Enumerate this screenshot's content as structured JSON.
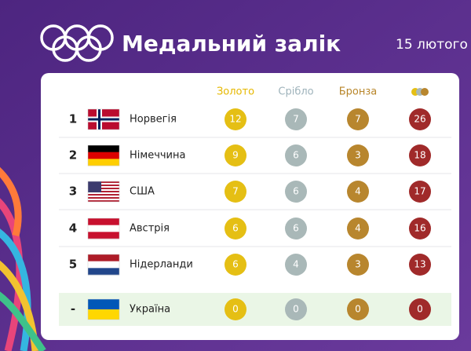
{
  "header": {
    "title": "Медальний залік",
    "date": "15 лютого"
  },
  "table": {
    "columns": [
      "Золото",
      "Срібло",
      "Бронза"
    ],
    "rows": [
      {
        "rank": 1,
        "country": "Норвегія",
        "gold": 12,
        "silver": 7,
        "bronze": 7,
        "total": 26
      },
      {
        "rank": 2,
        "country": "Німеччина",
        "gold": 9,
        "silver": 6,
        "bronze": 3,
        "total": 18
      },
      {
        "rank": 3,
        "country": "США",
        "gold": 7,
        "silver": 6,
        "bronze": 4,
        "total": 17
      },
      {
        "rank": 4,
        "country": "Австрія",
        "gold": 6,
        "silver": 6,
        "bronze": 4,
        "total": 16
      },
      {
        "rank": 5,
        "country": "Нідерланди",
        "gold": 6,
        "silver": 4,
        "bronze": 3,
        "total": 13
      },
      {
        "rank": "-",
        "country": "Україна",
        "gold": 0,
        "silver": 0,
        "bronze": 0,
        "total": 0
      }
    ]
  }
}
